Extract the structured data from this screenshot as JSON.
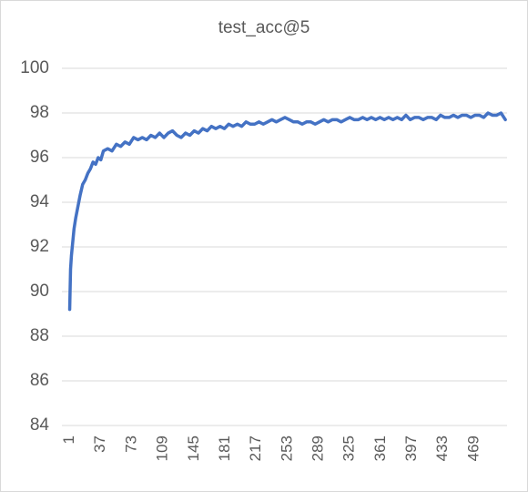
{
  "chart_data": {
    "type": "line",
    "title": "test_acc@5",
    "color": "#4472c4",
    "grid": true,
    "x": [
      1,
      2,
      3,
      4,
      6,
      8,
      10,
      13,
      16,
      19,
      22,
      25,
      28,
      31,
      34,
      37,
      40,
      45,
      50,
      55,
      60,
      65,
      70,
      75,
      80,
      85,
      90,
      95,
      100,
      105,
      110,
      115,
      120,
      125,
      130,
      135,
      140,
      145,
      150,
      155,
      160,
      165,
      170,
      175,
      180,
      185,
      190,
      195,
      200,
      205,
      210,
      215,
      220,
      225,
      230,
      235,
      240,
      245,
      250,
      255,
      260,
      265,
      270,
      275,
      280,
      285,
      290,
      295,
      300,
      305,
      310,
      315,
      320,
      325,
      330,
      335,
      340,
      345,
      350,
      355,
      360,
      365,
      370,
      375,
      380,
      385,
      390,
      395,
      400,
      405,
      410,
      415,
      420,
      425,
      430,
      435,
      440,
      445,
      450,
      455,
      460,
      465,
      470,
      475,
      480,
      485,
      490,
      495,
      500,
      505
    ],
    "values": [
      89.2,
      91.0,
      91.6,
      92.0,
      92.8,
      93.3,
      93.7,
      94.3,
      94.8,
      95.0,
      95.3,
      95.5,
      95.8,
      95.7,
      96.0,
      95.9,
      96.3,
      96.4,
      96.3,
      96.6,
      96.5,
      96.7,
      96.6,
      96.9,
      96.8,
      96.9,
      96.8,
      97.0,
      96.9,
      97.1,
      96.9,
      97.1,
      97.2,
      97.0,
      96.9,
      97.1,
      97.0,
      97.2,
      97.1,
      97.3,
      97.2,
      97.4,
      97.3,
      97.4,
      97.3,
      97.5,
      97.4,
      97.5,
      97.4,
      97.6,
      97.5,
      97.5,
      97.6,
      97.5,
      97.6,
      97.7,
      97.6,
      97.7,
      97.8,
      97.7,
      97.6,
      97.6,
      97.5,
      97.6,
      97.6,
      97.5,
      97.6,
      97.7,
      97.6,
      97.7,
      97.7,
      97.6,
      97.7,
      97.8,
      97.7,
      97.7,
      97.8,
      97.7,
      97.8,
      97.7,
      97.8,
      97.7,
      97.8,
      97.7,
      97.8,
      97.7,
      97.9,
      97.7,
      97.8,
      97.8,
      97.7,
      97.8,
      97.8,
      97.7,
      97.9,
      97.8,
      97.8,
      97.9,
      97.8,
      97.9,
      97.9,
      97.8,
      97.9,
      97.9,
      97.8,
      98.0,
      97.9,
      97.9,
      98.0,
      97.7
    ],
    "xlim": [
      -8,
      507
    ],
    "xticks": [
      1,
      37,
      73,
      109,
      145,
      181,
      217,
      253,
      289,
      325,
      361,
      397,
      433,
      469
    ],
    "ylim": [
      84,
      100
    ],
    "yticks": [
      84,
      86,
      88,
      90,
      92,
      94,
      96,
      98,
      100
    ]
  }
}
